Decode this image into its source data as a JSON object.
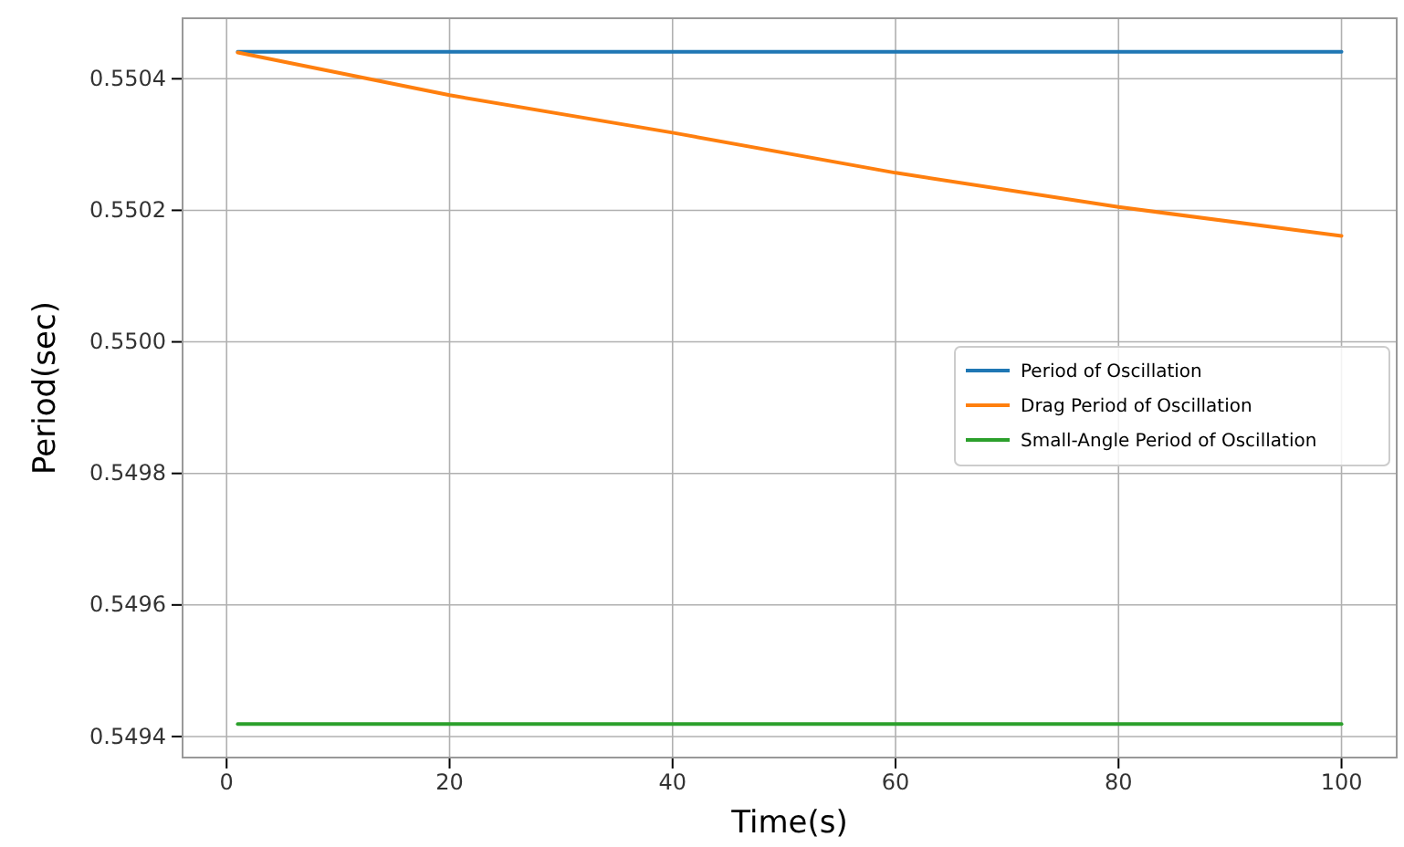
{
  "chart_data": {
    "type": "line",
    "xlabel": "Time(s)",
    "ylabel": "Period(sec)",
    "xlim": [
      -3.95,
      104.95
    ],
    "ylim": [
      0.549368,
      0.550492
    ],
    "xticks": [
      0,
      20,
      40,
      60,
      80,
      100
    ],
    "yticks": [
      {
        "value": 0.5494,
        "label": "0.5494"
      },
      {
        "value": 0.5496,
        "label": "0.5496"
      },
      {
        "value": 0.5498,
        "label": "0.5498"
      },
      {
        "value": 0.55,
        "label": "0.5500"
      },
      {
        "value": 0.5502,
        "label": "0.5502"
      },
      {
        "value": 0.5504,
        "label": "0.5504"
      }
    ],
    "grid": true,
    "legend": "right",
    "series": [
      {
        "name": "Period of Oscillation",
        "color": "#1f77b4",
        "x": [
          1,
          100
        ],
        "values": [
          0.550441,
          0.550441
        ]
      },
      {
        "name": "Drag Period of Oscillation",
        "color": "#ff7f0e",
        "x": [
          1,
          20,
          40,
          60,
          80,
          100
        ],
        "values": [
          0.55044,
          0.550375,
          0.550318,
          0.550257,
          0.550205,
          0.550161
        ]
      },
      {
        "name": "Small-Angle Period of Oscillation",
        "color": "#2ca02c",
        "x": [
          1,
          100
        ],
        "values": [
          0.549419,
          0.549419
        ]
      }
    ]
  }
}
